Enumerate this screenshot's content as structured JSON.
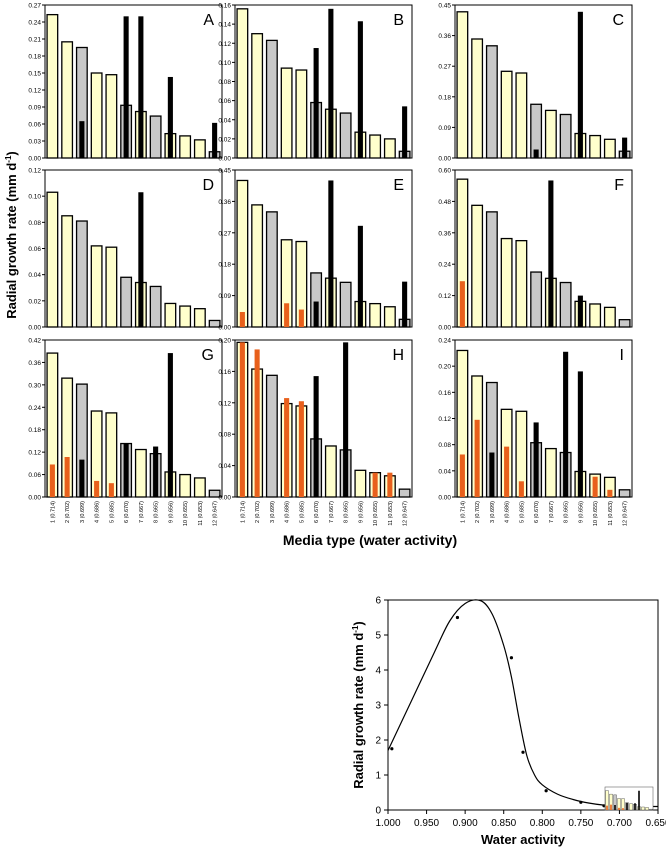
{
  "figure": {
    "shared_ylabel": "Radial growth rate (mm d",
    "ylabel_sup": "-1",
    "ylabel_close": ")",
    "shared_xlabel": "Media type (water activity)",
    "media_labels": [
      "1 (0.714)",
      "2 (0.702)",
      "3 (0.699)",
      "4 (0.686)",
      "5 (0.685)",
      "6 (0.670)",
      "7 (0.667)",
      "8 (0.665)",
      "9 (0.656)",
      "10 (0.655)",
      "11 (0.653)",
      "12 (0.647)"
    ]
  },
  "colors": {
    "cream": "#ffffcc",
    "grey": "#c8c8c8",
    "black": "#000000",
    "orange": "#e8601c",
    "axis": "#000000"
  },
  "chart_data": [
    {
      "type": "bar",
      "panel": "A",
      "ylim": [
        0,
        0.27
      ],
      "yticks": [
        "0.00",
        "0.03",
        "0.06",
        "0.09",
        "0.12",
        "0.15",
        "0.18",
        "0.21",
        "0.24",
        "0.27"
      ],
      "categories": [
        "1 (0.714)",
        "2 (0.702)",
        "3 (0.699)",
        "4 (0.686)",
        "5 (0.685)",
        "6 (0.670)",
        "7 (0.667)",
        "8 (0.665)",
        "9 (0.656)",
        "10 (0.655)",
        "11 (0.653)",
        "12 (0.647)"
      ],
      "series": [
        {
          "name": "main",
          "values": [
            0.253,
            0.205,
            0.195,
            0.15,
            0.147,
            0.093,
            0.082,
            0.074,
            0.043,
            0.039,
            0.032,
            0.011
          ]
        },
        {
          "name": "black",
          "values": [
            0,
            0,
            0.065,
            0,
            0,
            0.25,
            0.25,
            0,
            0.143,
            0,
            0,
            0.062
          ]
        },
        {
          "name": "orange",
          "values": [
            0,
            0,
            0,
            0,
            0,
            0,
            0,
            0,
            0,
            0,
            0,
            0
          ]
        }
      ]
    },
    {
      "type": "bar",
      "panel": "B",
      "ylim": [
        0,
        0.16
      ],
      "yticks": [
        "0.00",
        "0.02",
        "0.04",
        "0.06",
        "0.08",
        "0.10",
        "0.12",
        "0.14",
        "0.16"
      ],
      "categories": [
        "1 (0.714)",
        "2 (0.702)",
        "3 (0.699)",
        "4 (0.686)",
        "5 (0.685)",
        "6 (0.670)",
        "7 (0.667)",
        "8 (0.665)",
        "9 (0.656)",
        "10 (0.655)",
        "11 (0.653)",
        "12 (0.647)"
      ],
      "series": [
        {
          "name": "main",
          "values": [
            0.156,
            0.13,
            0.123,
            0.094,
            0.092,
            0.058,
            0.051,
            0.047,
            0.027,
            0.024,
            0.02,
            0.007
          ]
        },
        {
          "name": "black",
          "values": [
            0,
            0,
            0,
            0,
            0,
            0.115,
            0.156,
            0,
            0.143,
            0,
            0,
            0.054
          ]
        },
        {
          "name": "orange",
          "values": [
            0,
            0,
            0,
            0,
            0,
            0,
            0,
            0,
            0,
            0,
            0,
            0
          ]
        }
      ]
    },
    {
      "type": "bar",
      "panel": "C",
      "ylim": [
        0,
        0.45
      ],
      "yticks": [
        "0.00",
        "0.09",
        "0.18",
        "0.27",
        "0.36",
        "0.45"
      ],
      "categories": [
        "1 (0.714)",
        "2 (0.702)",
        "3 (0.699)",
        "4 (0.686)",
        "5 (0.685)",
        "6 (0.670)",
        "7 (0.667)",
        "8 (0.665)",
        "9 (0.656)",
        "10 (0.655)",
        "11 (0.653)",
        "12 (0.647)"
      ],
      "series": [
        {
          "name": "main",
          "values": [
            0.43,
            0.35,
            0.33,
            0.255,
            0.25,
            0.158,
            0.14,
            0.128,
            0.072,
            0.066,
            0.055,
            0.02
          ]
        },
        {
          "name": "black",
          "values": [
            0,
            0,
            0,
            0,
            0,
            0.025,
            0,
            0,
            0.43,
            0,
            0,
            0.06
          ]
        },
        {
          "name": "orange",
          "values": [
            0,
            0,
            0,
            0,
            0,
            0,
            0,
            0,
            0,
            0,
            0,
            0
          ]
        }
      ]
    },
    {
      "type": "bar",
      "panel": "D",
      "ylim": [
        0,
        0.12
      ],
      "yticks": [
        "0.00",
        "0.02",
        "0.04",
        "0.06",
        "0.08",
        "0.10",
        "0.12"
      ],
      "categories": [
        "1 (0.714)",
        "2 (0.702)",
        "3 (0.699)",
        "4 (0.686)",
        "5 (0.685)",
        "6 (0.670)",
        "7 (0.667)",
        "8 (0.665)",
        "9 (0.656)",
        "10 (0.655)",
        "11 (0.653)",
        "12 (0.647)"
      ],
      "series": [
        {
          "name": "main",
          "values": [
            0.103,
            0.085,
            0.081,
            0.062,
            0.061,
            0.038,
            0.034,
            0.031,
            0.018,
            0.016,
            0.014,
            0.005
          ]
        },
        {
          "name": "black",
          "values": [
            0,
            0,
            0,
            0,
            0,
            0,
            0.103,
            0,
            0,
            0,
            0,
            0
          ]
        },
        {
          "name": "orange",
          "values": [
            0,
            0,
            0,
            0,
            0,
            0,
            0,
            0,
            0,
            0,
            0,
            0
          ]
        }
      ]
    },
    {
      "type": "bar",
      "panel": "E",
      "ylim": [
        0,
        0.45
      ],
      "yticks": [
        "0.00",
        "0.09",
        "0.18",
        "0.27",
        "0.36",
        "0.45"
      ],
      "categories": [
        "1 (0.714)",
        "2 (0.702)",
        "3 (0.699)",
        "4 (0.686)",
        "5 (0.685)",
        "6 (0.670)",
        "7 (0.667)",
        "8 (0.665)",
        "9 (0.656)",
        "10 (0.655)",
        "11 (0.653)",
        "12 (0.647)"
      ],
      "series": [
        {
          "name": "main",
          "values": [
            0.42,
            0.35,
            0.33,
            0.25,
            0.245,
            0.155,
            0.14,
            0.128,
            0.073,
            0.067,
            0.058,
            0.022
          ]
        },
        {
          "name": "black",
          "values": [
            0,
            0,
            0,
            0,
            0,
            0.073,
            0.42,
            0,
            0.29,
            0,
            0,
            0.13
          ]
        },
        {
          "name": "orange",
          "values": [
            0.043,
            0,
            0,
            0.068,
            0.05,
            0,
            0,
            0,
            0,
            0,
            0,
            0
          ]
        }
      ]
    },
    {
      "type": "bar",
      "panel": "F",
      "ylim": [
        0,
        0.6
      ],
      "yticks": [
        "0.00",
        "0.12",
        "0.24",
        "0.36",
        "0.48",
        "0.60"
      ],
      "categories": [
        "1 (0.714)",
        "2 (0.702)",
        "3 (0.699)",
        "4 (0.686)",
        "5 (0.685)",
        "6 (0.670)",
        "7 (0.667)",
        "8 (0.665)",
        "9 (0.656)",
        "10 (0.655)",
        "11 (0.653)",
        "12 (0.647)"
      ],
      "series": [
        {
          "name": "main",
          "values": [
            0.565,
            0.465,
            0.44,
            0.338,
            0.33,
            0.21,
            0.186,
            0.17,
            0.098,
            0.088,
            0.075,
            0.028
          ]
        },
        {
          "name": "black",
          "values": [
            0,
            0,
            0,
            0,
            0,
            0,
            0.56,
            0,
            0.12,
            0,
            0,
            0
          ]
        },
        {
          "name": "orange",
          "values": [
            0.175,
            0,
            0,
            0,
            0,
            0,
            0,
            0,
            0,
            0,
            0,
            0
          ]
        }
      ]
    },
    {
      "type": "bar",
      "panel": "G",
      "ylim": [
        0,
        0.42
      ],
      "yticks": [
        "0.00",
        "0.06",
        "0.12",
        "0.18",
        "0.24",
        "0.30",
        "0.36",
        "0.42"
      ],
      "categories": [
        "1 (0.714)",
        "2 (0.702)",
        "3 (0.699)",
        "4 (0.686)",
        "5 (0.685)",
        "6 (0.670)",
        "7 (0.667)",
        "8 (0.665)",
        "9 (0.656)",
        "10 (0.655)",
        "11 (0.653)",
        "12 (0.647)"
      ],
      "series": [
        {
          "name": "main",
          "values": [
            0.385,
            0.318,
            0.302,
            0.23,
            0.225,
            0.143,
            0.127,
            0.116,
            0.067,
            0.06,
            0.051,
            0.018
          ]
        },
        {
          "name": "black",
          "values": [
            0,
            0,
            0.1,
            0,
            0,
            0.143,
            0,
            0.135,
            0.385,
            0,
            0,
            0
          ]
        },
        {
          "name": "orange",
          "values": [
            0.087,
            0.107,
            0,
            0.043,
            0.037,
            0,
            0,
            0,
            0,
            0,
            0,
            0
          ]
        }
      ]
    },
    {
      "type": "bar",
      "panel": "H",
      "ylim": [
        0,
        0.2
      ],
      "yticks": [
        "0.00",
        "0.04",
        "0.08",
        "0.12",
        "0.16",
        "0.20"
      ],
      "categories": [
        "1 (0.714)",
        "2 (0.702)",
        "3 (0.699)",
        "4 (0.686)",
        "5 (0.685)",
        "6 (0.670)",
        "7 (0.667)",
        "8 (0.665)",
        "9 (0.656)",
        "10 (0.655)",
        "11 (0.653)",
        "12 (0.647)"
      ],
      "series": [
        {
          "name": "main",
          "values": [
            0.197,
            0.163,
            0.155,
            0.119,
            0.116,
            0.074,
            0.065,
            0.06,
            0.034,
            0.031,
            0.027,
            0.01
          ]
        },
        {
          "name": "black",
          "values": [
            0,
            0,
            0,
            0,
            0,
            0.154,
            0,
            0.197,
            0,
            0,
            0,
            0
          ]
        },
        {
          "name": "orange",
          "values": [
            0.197,
            0.188,
            0,
            0.126,
            0.122,
            0,
            0,
            0,
            0,
            0.031,
            0.031,
            0
          ]
        }
      ]
    },
    {
      "type": "bar",
      "panel": "I",
      "ylim": [
        0,
        0.24
      ],
      "yticks": [
        "0.00",
        "0.04",
        "0.08",
        "0.12",
        "0.16",
        "0.20",
        "0.24"
      ],
      "categories": [
        "1 (0.714)",
        "2 (0.702)",
        "3 (0.699)",
        "4 (0.686)",
        "5 (0.685)",
        "6 (0.670)",
        "7 (0.667)",
        "8 (0.665)",
        "9 (0.656)",
        "10 (0.655)",
        "11 (0.653)",
        "12 (0.647)"
      ],
      "series": [
        {
          "name": "main",
          "values": [
            0.224,
            0.185,
            0.175,
            0.134,
            0.131,
            0.083,
            0.074,
            0.068,
            0.039,
            0.035,
            0.03,
            0.011
          ]
        },
        {
          "name": "black",
          "values": [
            0,
            0,
            0.068,
            0,
            0,
            0.114,
            0,
            0.222,
            0.192,
            0,
            0,
            0
          ]
        },
        {
          "name": "orange",
          "values": [
            0.065,
            0.118,
            0,
            0.077,
            0.024,
            0,
            0,
            0,
            0,
            0.031,
            0.011,
            0
          ]
        }
      ]
    },
    {
      "type": "line",
      "panel": "bottom",
      "xlabel": "Water activity",
      "ylabel": "Radial growth rate (mm d",
      "ylabel_sup": "-1",
      "ylabel_close": ")",
      "xlim": [
        1.0,
        0.65
      ],
      "ylim": [
        0,
        6
      ],
      "xticks": [
        "1.000",
        "0.950",
        "0.900",
        "0.850",
        "0.800",
        "0.750",
        "0.700",
        "0.650"
      ],
      "yticks": [
        "0",
        "1",
        "2",
        "3",
        "4",
        "5",
        "6"
      ],
      "points": [
        [
          0.995,
          1.75
        ],
        [
          0.91,
          5.5
        ],
        [
          0.84,
          4.35
        ],
        [
          0.825,
          1.65
        ],
        [
          0.795,
          0.55
        ],
        [
          0.75,
          0.22
        ],
        [
          0.72,
          0.12
        ]
      ],
      "curve": [
        [
          1.0,
          1.7
        ],
        [
          0.97,
          3.1
        ],
        [
          0.94,
          4.5
        ],
        [
          0.92,
          5.4
        ],
        [
          0.9,
          5.9
        ],
        [
          0.88,
          5.98
        ],
        [
          0.865,
          5.6
        ],
        [
          0.85,
          4.7
        ],
        [
          0.84,
          3.8
        ],
        [
          0.83,
          2.6
        ],
        [
          0.82,
          1.55
        ],
        [
          0.81,
          1.0
        ],
        [
          0.8,
          0.72
        ],
        [
          0.78,
          0.45
        ],
        [
          0.76,
          0.3
        ],
        [
          0.74,
          0.2
        ],
        [
          0.72,
          0.14
        ],
        [
          0.69,
          0.1
        ],
        [
          0.65,
          0.1
        ]
      ]
    }
  ]
}
